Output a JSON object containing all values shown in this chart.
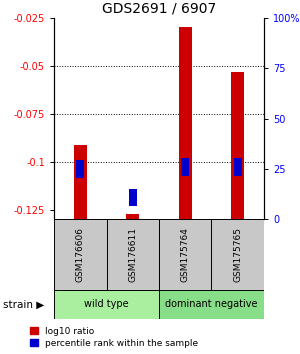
{
  "title": "GDS2691 / 6907",
  "samples": [
    "GSM176606",
    "GSM176611",
    "GSM175764",
    "GSM175765"
  ],
  "log10_ratio": [
    -0.091,
    -0.127,
    -0.03,
    -0.053
  ],
  "percentile_rank": [
    25,
    11,
    26,
    26
  ],
  "bar_color": "#CC0000",
  "blue_color": "#0000CC",
  "ylim_left": [
    -0.13,
    -0.025
  ],
  "ylim_right": [
    0,
    100
  ],
  "yticks_left": [
    -0.125,
    -0.1,
    -0.075,
    -0.05,
    -0.025
  ],
  "ytick_labels_left": [
    "-0.125",
    "-0.1",
    "-0.075",
    "-0.05",
    "-0.025"
  ],
  "yticks_right": [
    0,
    25,
    50,
    75,
    100
  ],
  "ytick_labels_right": [
    "0",
    "25",
    "50",
    "75",
    "100%"
  ],
  "gridlines": [
    -0.1,
    -0.075,
    -0.05
  ],
  "group_label": "strain",
  "legend_ratio_label": "log10 ratio",
  "legend_pct_label": "percentile rank within the sample",
  "bar_width": 0.25,
  "groups": [
    {
      "label": "wild type",
      "start": 0,
      "end": 1,
      "color": "#AAEEA0"
    },
    {
      "label": "dominant negative",
      "start": 2,
      "end": 3,
      "color": "#88DD88"
    }
  ],
  "sample_box_color": "#C8C8C8",
  "wild_type_color": "#AAEEA0",
  "dominant_negative_color": "#88DD88"
}
